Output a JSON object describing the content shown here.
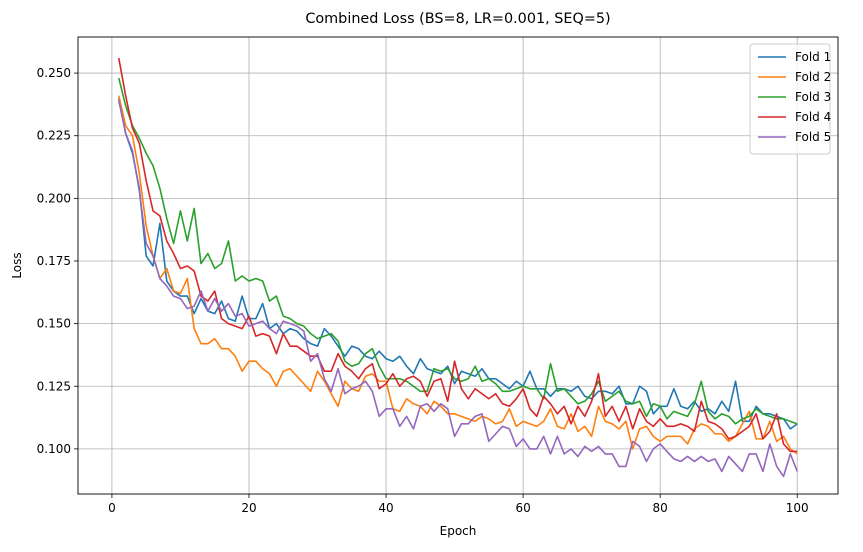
{
  "chart_data": {
    "type": "line",
    "title": "Combined Loss (BS=8, LR=0.001, SEQ=5)",
    "xlabel": "Epoch",
    "ylabel": "Loss",
    "xlim": [
      -4.95,
      105.95
    ],
    "ylim": [
      0.082,
      0.2644
    ],
    "xticks": [
      0,
      20,
      40,
      60,
      80,
      100
    ],
    "yticks": [
      0.1,
      0.125,
      0.15,
      0.175,
      0.2,
      0.225,
      0.25
    ],
    "ytick_labels": [
      "0.100",
      "0.125",
      "0.150",
      "0.175",
      "0.200",
      "0.225",
      "0.250"
    ],
    "grid": true,
    "legend_position": "top-right",
    "x": [
      1,
      2,
      3,
      4,
      5,
      6,
      7,
      8,
      9,
      10,
      11,
      12,
      13,
      14,
      15,
      16,
      17,
      18,
      19,
      20,
      21,
      22,
      23,
      24,
      25,
      26,
      27,
      28,
      29,
      30,
      31,
      32,
      33,
      34,
      35,
      36,
      37,
      38,
      39,
      40,
      41,
      42,
      43,
      44,
      45,
      46,
      47,
      48,
      49,
      50,
      51,
      52,
      53,
      54,
      55,
      56,
      57,
      58,
      59,
      60,
      61,
      62,
      63,
      64,
      65,
      66,
      67,
      68,
      69,
      70,
      71,
      72,
      73,
      74,
      75,
      76,
      77,
      78,
      79,
      80,
      81,
      82,
      83,
      84,
      85,
      86,
      87,
      88,
      89,
      90,
      91,
      92,
      93,
      94,
      95,
      96,
      97,
      98,
      99,
      100
    ],
    "series": [
      {
        "name": "Fold 1",
        "color": "#1f77b4",
        "values": [
          0.24,
          0.226,
          0.218,
          0.204,
          0.177,
          0.173,
          0.19,
          0.167,
          0.163,
          0.161,
          0.161,
          0.154,
          0.16,
          0.155,
          0.154,
          0.159,
          0.152,
          0.151,
          0.161,
          0.152,
          0.152,
          0.158,
          0.148,
          0.15,
          0.146,
          0.148,
          0.147,
          0.144,
          0.142,
          0.141,
          0.148,
          0.145,
          0.141,
          0.137,
          0.141,
          0.14,
          0.137,
          0.136,
          0.139,
          0.136,
          0.135,
          0.137,
          0.133,
          0.13,
          0.136,
          0.132,
          0.131,
          0.13,
          0.133,
          0.126,
          0.131,
          0.13,
          0.129,
          0.132,
          0.128,
          0.128,
          0.126,
          0.124,
          0.127,
          0.125,
          0.131,
          0.124,
          0.124,
          0.121,
          0.124,
          0.124,
          0.123,
          0.125,
          0.121,
          0.12,
          0.123,
          0.123,
          0.122,
          0.125,
          0.118,
          0.118,
          0.125,
          0.123,
          0.114,
          0.117,
          0.117,
          0.124,
          0.117,
          0.116,
          0.119,
          0.115,
          0.116,
          0.114,
          0.119,
          0.115,
          0.127,
          0.111,
          0.111,
          0.117,
          0.114,
          0.114,
          0.113,
          0.112,
          0.108,
          0.11
        ]
      },
      {
        "name": "Fold 2",
        "color": "#ff7f0e",
        "values": [
          0.241,
          0.229,
          0.225,
          0.21,
          0.189,
          0.177,
          0.168,
          0.172,
          0.163,
          0.162,
          0.168,
          0.148,
          0.142,
          0.142,
          0.144,
          0.14,
          0.14,
          0.137,
          0.131,
          0.135,
          0.135,
          0.132,
          0.13,
          0.125,
          0.131,
          0.132,
          0.129,
          0.126,
          0.123,
          0.131,
          0.127,
          0.122,
          0.117,
          0.127,
          0.124,
          0.123,
          0.129,
          0.13,
          0.127,
          0.127,
          0.116,
          0.115,
          0.12,
          0.118,
          0.117,
          0.114,
          0.119,
          0.117,
          0.114,
          0.114,
          0.113,
          0.112,
          0.111,
          0.113,
          0.112,
          0.11,
          0.111,
          0.116,
          0.109,
          0.111,
          0.11,
          0.109,
          0.111,
          0.116,
          0.109,
          0.108,
          0.114,
          0.107,
          0.109,
          0.105,
          0.117,
          0.111,
          0.11,
          0.108,
          0.111,
          0.1,
          0.108,
          0.109,
          0.105,
          0.103,
          0.105,
          0.105,
          0.105,
          0.102,
          0.108,
          0.11,
          0.109,
          0.106,
          0.106,
          0.103,
          0.105,
          0.11,
          0.115,
          0.104,
          0.104,
          0.111,
          0.103,
          0.105,
          0.1,
          0.098
        ]
      },
      {
        "name": "Fold 3",
        "color": "#2ca02c",
        "values": [
          0.248,
          0.237,
          0.229,
          0.224,
          0.218,
          0.213,
          0.204,
          0.192,
          0.182,
          0.195,
          0.183,
          0.196,
          0.174,
          0.178,
          0.172,
          0.174,
          0.183,
          0.167,
          0.169,
          0.167,
          0.168,
          0.167,
          0.159,
          0.161,
          0.153,
          0.152,
          0.15,
          0.149,
          0.146,
          0.144,
          0.145,
          0.146,
          0.143,
          0.135,
          0.133,
          0.134,
          0.138,
          0.14,
          0.133,
          0.128,
          0.128,
          0.128,
          0.127,
          0.125,
          0.123,
          0.123,
          0.132,
          0.131,
          0.132,
          0.128,
          0.127,
          0.128,
          0.133,
          0.127,
          0.128,
          0.126,
          0.123,
          0.123,
          0.124,
          0.125,
          0.124,
          0.124,
          0.12,
          0.134,
          0.123,
          0.124,
          0.121,
          0.118,
          0.119,
          0.122,
          0.127,
          0.119,
          0.121,
          0.123,
          0.119,
          0.118,
          0.119,
          0.113,
          0.118,
          0.117,
          0.112,
          0.115,
          0.114,
          0.113,
          0.118,
          0.127,
          0.115,
          0.112,
          0.114,
          0.113,
          0.11,
          0.112,
          0.113,
          0.116,
          0.114,
          0.113,
          0.112,
          0.112,
          0.111,
          0.11
        ]
      },
      {
        "name": "Fold 4",
        "color": "#d62728",
        "values": [
          0.256,
          0.241,
          0.228,
          0.222,
          0.207,
          0.195,
          0.193,
          0.183,
          0.178,
          0.172,
          0.173,
          0.171,
          0.161,
          0.159,
          0.163,
          0.152,
          0.15,
          0.149,
          0.148,
          0.153,
          0.145,
          0.146,
          0.145,
          0.138,
          0.146,
          0.141,
          0.141,
          0.139,
          0.137,
          0.137,
          0.131,
          0.131,
          0.138,
          0.133,
          0.131,
          0.128,
          0.132,
          0.134,
          0.124,
          0.126,
          0.13,
          0.125,
          0.128,
          0.129,
          0.127,
          0.121,
          0.127,
          0.128,
          0.119,
          0.135,
          0.124,
          0.12,
          0.124,
          0.122,
          0.12,
          0.122,
          0.118,
          0.117,
          0.12,
          0.124,
          0.116,
          0.113,
          0.121,
          0.118,
          0.114,
          0.117,
          0.11,
          0.117,
          0.113,
          0.119,
          0.13,
          0.113,
          0.117,
          0.111,
          0.117,
          0.108,
          0.116,
          0.111,
          0.109,
          0.112,
          0.109,
          0.109,
          0.11,
          0.109,
          0.107,
          0.119,
          0.111,
          0.11,
          0.108,
          0.104,
          0.105,
          0.107,
          0.109,
          0.114,
          0.104,
          0.107,
          0.114,
          0.102,
          0.099,
          0.099
        ]
      },
      {
        "name": "Fold 5",
        "color": "#9467bd",
        "values": [
          0.239,
          0.226,
          0.219,
          0.203,
          0.182,
          0.177,
          0.168,
          0.165,
          0.161,
          0.16,
          0.156,
          0.157,
          0.163,
          0.155,
          0.16,
          0.155,
          0.158,
          0.153,
          0.154,
          0.149,
          0.15,
          0.151,
          0.148,
          0.146,
          0.151,
          0.15,
          0.149,
          0.147,
          0.135,
          0.138,
          0.128,
          0.123,
          0.132,
          0.122,
          0.124,
          0.125,
          0.127,
          0.123,
          0.113,
          0.116,
          0.116,
          0.109,
          0.113,
          0.108,
          0.117,
          0.118,
          0.115,
          0.118,
          0.116,
          0.105,
          0.11,
          0.11,
          0.113,
          0.114,
          0.103,
          0.106,
          0.109,
          0.108,
          0.101,
          0.104,
          0.1,
          0.1,
          0.105,
          0.098,
          0.105,
          0.098,
          0.1,
          0.097,
          0.101,
          0.099,
          0.101,
          0.098,
          0.098,
          0.093,
          0.093,
          0.103,
          0.101,
          0.095,
          0.1,
          0.102,
          0.099,
          0.096,
          0.095,
          0.097,
          0.095,
          0.097,
          0.095,
          0.096,
          0.091,
          0.097,
          0.094,
          0.091,
          0.098,
          0.098,
          0.091,
          0.102,
          0.093,
          0.089,
          0.098,
          0.091
        ]
      }
    ]
  }
}
